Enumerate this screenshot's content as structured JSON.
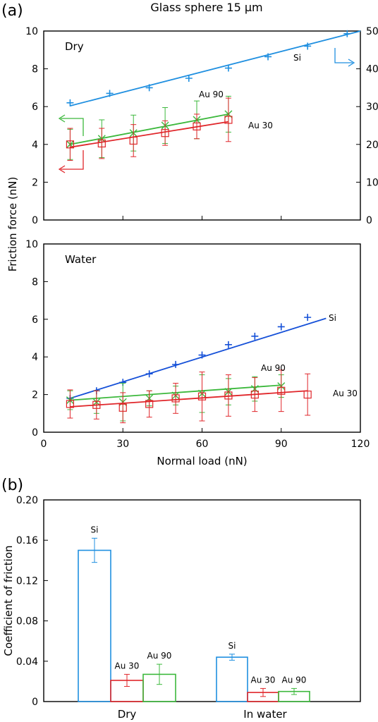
{
  "figure": {
    "title": "Glass sphere 15 μm",
    "panel_a_label": "(a)",
    "panel_b_label": "(b)",
    "shared_ylabel": "Friction force (nN)"
  },
  "colors": {
    "Si": "#1f8fe0",
    "Au30": "#e0262a",
    "Au90": "#3cb83c",
    "SiWater": "#1550d8"
  },
  "chart_data": [
    {
      "type": "line",
      "panel": "dry",
      "panel_label": "Dry",
      "xlim": [
        0,
        120
      ],
      "ylim": [
        0,
        10
      ],
      "y2lim": [
        0,
        50
      ],
      "yticks": [
        0,
        2,
        4,
        6,
        8,
        10
      ],
      "y2ticks": [
        0,
        10,
        20,
        30,
        40,
        50
      ],
      "grid": false,
      "series": [
        {
          "name": "Si",
          "axis": "right",
          "color": "#1f8fe0",
          "marker": "plus",
          "x": [
            10,
            25,
            40,
            55,
            70,
            85,
            100,
            115
          ],
          "y": [
            31,
            33.5,
            35,
            37.5,
            40.2,
            43.2,
            46,
            49.3
          ],
          "fit": [
            [
              10,
              30.2
            ],
            [
              120,
              50
            ]
          ]
        },
        {
          "name": "Au 90",
          "axis": "left",
          "color": "#3cb83c",
          "marker": "x",
          "x": [
            10,
            22,
            34,
            46,
            58,
            70
          ],
          "y": [
            4.0,
            4.3,
            4.6,
            5.0,
            5.3,
            5.6
          ],
          "err": [
            0.8,
            1.0,
            0.95,
            0.95,
            1.0,
            0.95
          ],
          "fit": [
            [
              10,
              4.0
            ],
            [
              70,
              5.6
            ]
          ]
        },
        {
          "name": "Au 30",
          "axis": "left",
          "color": "#e0262a",
          "marker": "square",
          "x": [
            10,
            22,
            34,
            46,
            58,
            70
          ],
          "y": [
            4.0,
            4.05,
            4.2,
            4.6,
            4.95,
            5.3
          ],
          "err": [
            0.85,
            0.8,
            0.85,
            0.65,
            0.65,
            1.15
          ],
          "fit": [
            [
              10,
              3.85
            ],
            [
              70,
              5.2
            ]
          ]
        }
      ],
      "annotations": {
        "si": "Si",
        "au90": "Au 90",
        "au30": "Au 30"
      }
    },
    {
      "type": "line",
      "panel": "water",
      "panel_label": "Water",
      "xlim": [
        0,
        120
      ],
      "ylim": [
        0,
        10
      ],
      "xticks": [
        0,
        30,
        60,
        90,
        120
      ],
      "yticks": [
        0,
        2,
        4,
        6,
        8,
        10
      ],
      "xlabel": "Normal load (nN)",
      "grid": false,
      "series": [
        {
          "name": "Si",
          "color": "#1550d8",
          "marker": "plus",
          "x": [
            10,
            20,
            30,
            40,
            50,
            60,
            70,
            80,
            90,
            100
          ],
          "y": [
            1.8,
            2.2,
            2.65,
            3.1,
            3.6,
            4.1,
            4.65,
            5.1,
            5.6,
            6.1
          ],
          "fit": [
            [
              10,
              1.8
            ],
            [
              107,
              6.05
            ]
          ]
        },
        {
          "name": "Au 90",
          "color": "#3cb83c",
          "marker": "x",
          "x": [
            10,
            20,
            30,
            40,
            50,
            60,
            70,
            80,
            90
          ],
          "y": [
            1.7,
            1.6,
            1.6,
            1.8,
            1.95,
            2.05,
            2.15,
            2.3,
            2.45
          ],
          "err": [
            0.5,
            0.6,
            1.0,
            0.4,
            0.5,
            1.0,
            0.7,
            0.65,
            0.6
          ],
          "fit": [
            [
              10,
              1.7
            ],
            [
              90,
              2.5
            ]
          ]
        },
        {
          "name": "Au 30",
          "color": "#e0262a",
          "marker": "square",
          "x": [
            10,
            20,
            30,
            40,
            50,
            60,
            70,
            80,
            90,
            100
          ],
          "y": [
            1.5,
            1.45,
            1.3,
            1.5,
            1.8,
            1.9,
            1.95,
            2.0,
            2.2,
            2.0
          ],
          "err": [
            0.75,
            0.75,
            0.8,
            0.7,
            0.8,
            1.3,
            1.1,
            0.9,
            1.1,
            1.1
          ],
          "fit": [
            [
              10,
              1.35
            ],
            [
              100,
              2.2
            ]
          ]
        }
      ],
      "annotations": {
        "si": "Si",
        "au90": "Au 90",
        "au30": "Au 30"
      }
    },
    {
      "type": "bar",
      "panel": "b",
      "ylabel": "Coefficient of friction",
      "ylim": [
        0,
        0.2
      ],
      "yticks": [
        "0",
        "0.04",
        "0.08",
        "0.12",
        "0.16",
        "0.20"
      ],
      "categories": [
        "Dry",
        "In water"
      ],
      "series": [
        {
          "name": "Si",
          "color": "#1f8fe0",
          "values": [
            0.15,
            0.044
          ],
          "err": [
            0.012,
            0.003
          ]
        },
        {
          "name": "Au 30",
          "color": "#e0262a",
          "values": [
            0.021,
            0.009
          ],
          "err": [
            0.006,
            0.004
          ]
        },
        {
          "name": "Au 90",
          "color": "#3cb83c",
          "values": [
            0.027,
            0.01
          ],
          "err": [
            0.01,
            0.003
          ]
        }
      ],
      "grid": false
    }
  ]
}
